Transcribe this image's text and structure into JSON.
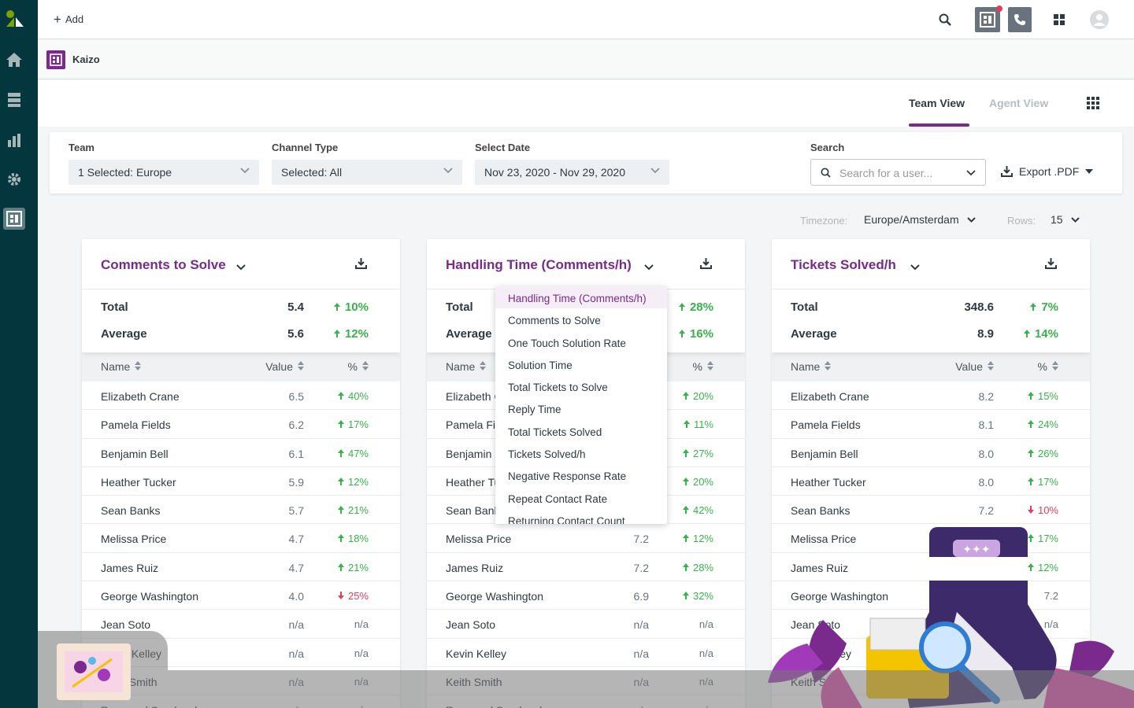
{
  "topbar": {
    "add_label": "Add"
  },
  "app": {
    "name": "Kaizo"
  },
  "views": {
    "team": "Team View",
    "agent": "Agent View"
  },
  "filters": {
    "team": {
      "label": "Team",
      "value": "1 Selected: Europe"
    },
    "channel": {
      "label": "Channel Type",
      "value": "Selected: All"
    },
    "date": {
      "label": "Select Date",
      "value": "Nov 23, 2020 - Nov 29, 2020"
    },
    "search": {
      "label": "Search",
      "placeholder": "Search for a user..."
    },
    "export_label": "Export .PDF"
  },
  "settings": {
    "timezone_label": "Timezone:",
    "timezone": "Europe/Amsterdam",
    "rows_label": "Rows:",
    "rows": "15"
  },
  "table_headers": {
    "name": "Name",
    "value": "Value",
    "pct": "%"
  },
  "summary_labels": {
    "total": "Total",
    "average": "Average"
  },
  "cards": [
    {
      "title": "Comments to Solve",
      "total": "5.4",
      "total_pct": "10%",
      "average": "5.6",
      "average_pct": "12%",
      "rows": [
        {
          "name": "Elizabeth Crane",
          "value": "6.5",
          "pct": "40%",
          "dir": "up"
        },
        {
          "name": "Pamela Fields",
          "value": "6.2",
          "pct": "17%",
          "dir": "up"
        },
        {
          "name": "Benjamin Bell",
          "value": "6.1",
          "pct": "47%",
          "dir": "up"
        },
        {
          "name": "Heather Tucker",
          "value": "5.9",
          "pct": "12%",
          "dir": "up"
        },
        {
          "name": "Sean Banks",
          "value": "5.7",
          "pct": "21%",
          "dir": "up"
        },
        {
          "name": "Melissa Price",
          "value": "4.7",
          "pct": "18%",
          "dir": "up"
        },
        {
          "name": "James Ruiz",
          "value": "4.7",
          "pct": "21%",
          "dir": "up"
        },
        {
          "name": "George Washington",
          "value": "4.0",
          "pct": "25%",
          "dir": "down"
        },
        {
          "name": "Jean Soto",
          "value": "n/a",
          "pct": "n/a",
          "dir": "na"
        },
        {
          "name": "Kevin Kelley",
          "value": "n/a",
          "pct": "n/a",
          "dir": "na"
        },
        {
          "name": "Keith Smith",
          "value": "n/a",
          "pct": "n/a",
          "dir": "na"
        },
        {
          "name": "Raymond Sandoval",
          "value": "n/a",
          "pct": "n/a",
          "dir": "na"
        }
      ]
    },
    {
      "title": "Handling Time (Comments/h)",
      "total": "",
      "total_pct": "28%",
      "average": "",
      "average_pct": "16%",
      "rows": [
        {
          "name": "Elizabeth Crane",
          "value": "",
          "pct": "20%",
          "dir": "up"
        },
        {
          "name": "Pamela Fields",
          "value": "",
          "pct": "11%",
          "dir": "up"
        },
        {
          "name": "Benjamin Bell",
          "value": "",
          "pct": "27%",
          "dir": "up"
        },
        {
          "name": "Heather Tucker",
          "value": "",
          "pct": "20%",
          "dir": "up"
        },
        {
          "name": "Sean Banks",
          "value": "",
          "pct": "42%",
          "dir": "up"
        },
        {
          "name": "Melissa Price",
          "value": "7.2",
          "pct": "12%",
          "dir": "up"
        },
        {
          "name": "James Ruiz",
          "value": "7.2",
          "pct": "28%",
          "dir": "up"
        },
        {
          "name": "George Washington",
          "value": "6.9",
          "pct": "32%",
          "dir": "up"
        },
        {
          "name": "Jean Soto",
          "value": "n/a",
          "pct": "n/a",
          "dir": "na"
        },
        {
          "name": "Kevin Kelley",
          "value": "n/a",
          "pct": "n/a",
          "dir": "na"
        },
        {
          "name": "Keith Smith",
          "value": "n/a",
          "pct": "n/a",
          "dir": "na"
        },
        {
          "name": "Raymond Sandoval",
          "value": "n/a",
          "pct": "n/a",
          "dir": "na"
        }
      ]
    },
    {
      "title": "Tickets Solved/h",
      "total": "348.6",
      "total_pct": "7%",
      "average": "8.9",
      "average_pct": "14%",
      "rows": [
        {
          "name": "Elizabeth Crane",
          "value": "8.2",
          "pct": "15%",
          "dir": "up"
        },
        {
          "name": "Pamela Fields",
          "value": "8.1",
          "pct": "24%",
          "dir": "up"
        },
        {
          "name": "Benjamin Bell",
          "value": "8.0",
          "pct": "26%",
          "dir": "up"
        },
        {
          "name": "Heather Tucker",
          "value": "8.0",
          "pct": "17%",
          "dir": "up"
        },
        {
          "name": "Sean Banks",
          "value": "7.2",
          "pct": "10%",
          "dir": "down"
        },
        {
          "name": "Melissa Price",
          "value": "",
          "pct": "17%",
          "dir": "up"
        },
        {
          "name": "James Ruiz",
          "value": "",
          "pct": "12%",
          "dir": "up"
        },
        {
          "name": "George Washington",
          "value": "",
          "pct": "7.2",
          "dir": "na"
        },
        {
          "name": "Jean Soto",
          "value": "",
          "pct": "n/a",
          "dir": "na"
        },
        {
          "name": "Kevin Kelley",
          "value": "",
          "pct": "",
          "dir": "na"
        },
        {
          "name": "Keith Smith",
          "value": "",
          "pct": "",
          "dir": "na"
        },
        {
          "name": "",
          "value": "",
          "pct": "",
          "dir": "na"
        }
      ]
    }
  ],
  "metric_dropdown": [
    "Handling Time (Comments/h)",
    "Comments to Solve",
    "One Touch Solution Rate",
    "Solution Time",
    "Total Tickets to Solve",
    "Reply Time",
    "Total Tickets Solved",
    "Tickets Solved/h",
    "Negative Response Rate",
    "Repeat Contact Rate",
    "Returning Contact Count"
  ],
  "colors": {
    "brand": "#7a2a8c",
    "sidebar": "#03363d",
    "up": "#37b34a",
    "down": "#e43d5b"
  }
}
